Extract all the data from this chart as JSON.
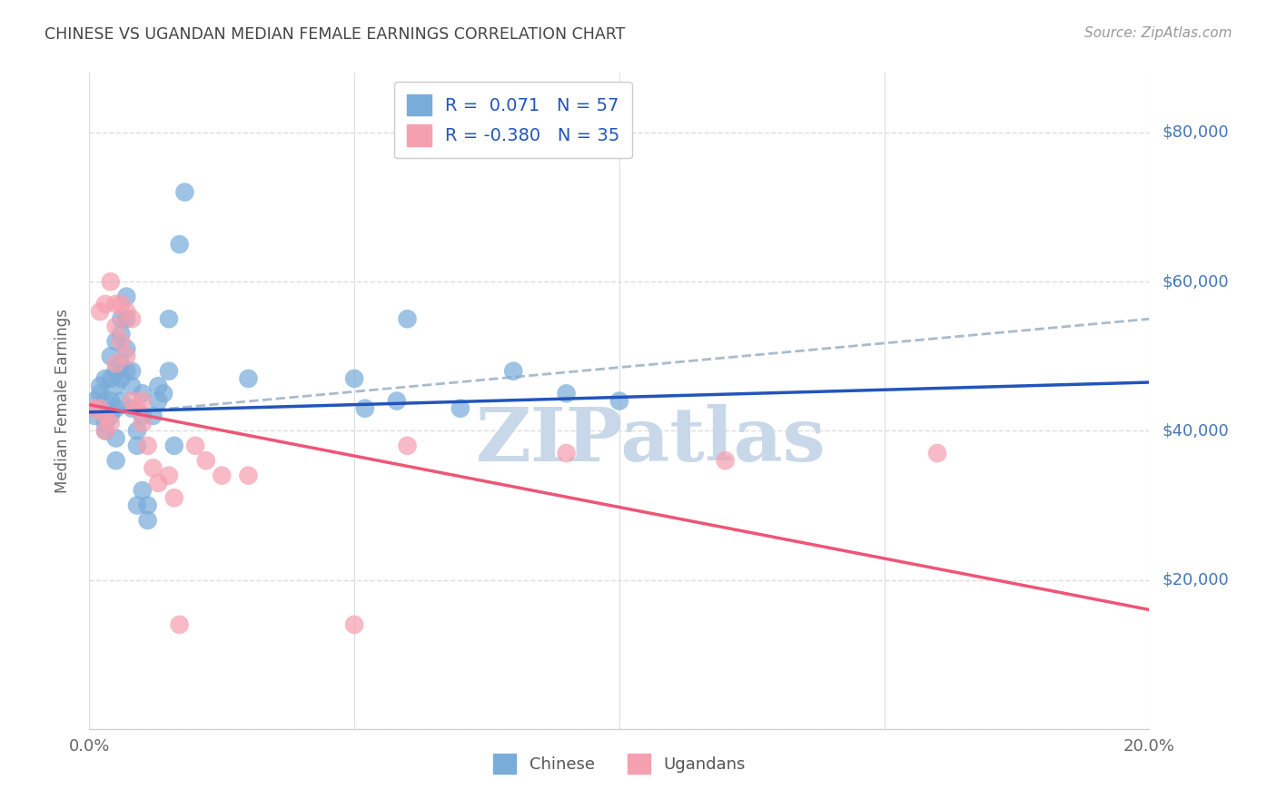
{
  "title": "CHINESE VS UGANDAN MEDIAN FEMALE EARNINGS CORRELATION CHART",
  "source": "Source: ZipAtlas.com",
  "ylabel": "Median Female Earnings",
  "xlim": [
    0.0,
    0.2
  ],
  "ylim": [
    0,
    88000
  ],
  "yticks": [
    0,
    20000,
    40000,
    60000,
    80000
  ],
  "xticks": [
    0.0,
    0.05,
    0.1,
    0.15,
    0.2
  ],
  "chinese_R": 0.071,
  "chinese_N": 57,
  "ugandan_R": -0.38,
  "ugandan_N": 35,
  "chinese_color": "#7AACDA",
  "ugandan_color": "#F5A0B0",
  "chinese_line_color": "#2255BB",
  "ugandan_line_color": "#EE5577",
  "dashed_line_color": "#AABBCC",
  "legend_text_color": "#2255BB",
  "title_color": "#444444",
  "grid_color": "#DDDDDD",
  "right_label_color": "#4477BB",
  "background_color": "#FFFFFF",
  "chinese_x": [
    0.001,
    0.001,
    0.002,
    0.002,
    0.002,
    0.003,
    0.003,
    0.003,
    0.003,
    0.004,
    0.004,
    0.004,
    0.004,
    0.005,
    0.005,
    0.005,
    0.005,
    0.005,
    0.005,
    0.006,
    0.006,
    0.006,
    0.006,
    0.006,
    0.007,
    0.007,
    0.007,
    0.007,
    0.008,
    0.008,
    0.008,
    0.009,
    0.009,
    0.009,
    0.01,
    0.01,
    0.01,
    0.011,
    0.011,
    0.012,
    0.013,
    0.013,
    0.014,
    0.015,
    0.015,
    0.016,
    0.017,
    0.018,
    0.03,
    0.05,
    0.052,
    0.058,
    0.06,
    0.07,
    0.08,
    0.09,
    0.1
  ],
  "chinese_y": [
    42000,
    44000,
    45000,
    43000,
    46000,
    41000,
    44000,
    47000,
    40000,
    42000,
    44000,
    47000,
    50000,
    52000,
    46000,
    43000,
    48000,
    39000,
    36000,
    55000,
    53000,
    49000,
    47000,
    44000,
    58000,
    55000,
    51000,
    48000,
    48000,
    46000,
    43000,
    40000,
    38000,
    30000,
    45000,
    42000,
    32000,
    28000,
    30000,
    42000,
    46000,
    44000,
    45000,
    55000,
    48000,
    38000,
    65000,
    72000,
    47000,
    47000,
    43000,
    44000,
    55000,
    43000,
    48000,
    45000,
    44000
  ],
  "ugandan_x": [
    0.001,
    0.002,
    0.002,
    0.003,
    0.003,
    0.003,
    0.004,
    0.004,
    0.005,
    0.005,
    0.005,
    0.006,
    0.006,
    0.007,
    0.007,
    0.008,
    0.008,
    0.009,
    0.01,
    0.01,
    0.011,
    0.012,
    0.013,
    0.015,
    0.016,
    0.017,
    0.02,
    0.022,
    0.025,
    0.03,
    0.05,
    0.06,
    0.09,
    0.12,
    0.16
  ],
  "ugandan_y": [
    43000,
    56000,
    43000,
    42000,
    40000,
    57000,
    41000,
    60000,
    57000,
    54000,
    49000,
    57000,
    52000,
    56000,
    50000,
    55000,
    44000,
    43000,
    44000,
    41000,
    38000,
    35000,
    33000,
    34000,
    31000,
    14000,
    38000,
    36000,
    34000,
    34000,
    14000,
    38000,
    37000,
    36000,
    37000
  ],
  "blue_line_x0": 0.0,
  "blue_line_y0": 42500,
  "blue_line_x1": 0.2,
  "blue_line_y1": 46500,
  "pink_line_x0": 0.0,
  "pink_line_y0": 43500,
  "pink_line_x1": 0.2,
  "pink_line_y1": 16000,
  "dash_line_x0": 0.0,
  "dash_line_y0": 42000,
  "dash_line_x1": 0.2,
  "dash_line_y1": 55000,
  "watermark": "ZIPatlas",
  "watermark_color": "#C8D8E8",
  "legend_border_color": "#CCCCCC"
}
